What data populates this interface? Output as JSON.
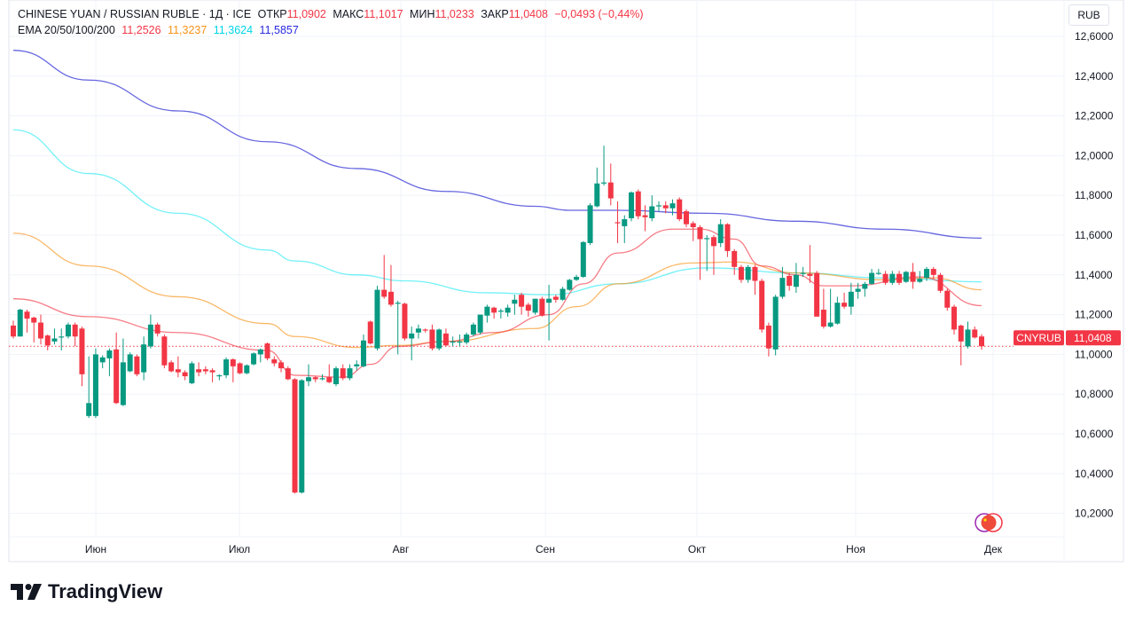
{
  "legend": {
    "symbol": "CHINESE YUAN / RUSSIAN RUBLE · 1Д · ICE",
    "open_label": "ОТКР",
    "open": "11,0902",
    "high_label": "МАКС",
    "high": "11,1017",
    "low_label": "МИН",
    "low": "11,0233",
    "close_label": "ЗАКР",
    "close": "11,0408",
    "change": "−0,0493 (−0,44%)",
    "ema_label": "EMA 20/50/100/200",
    "ema20": "11,2526",
    "ema50": "11,3237",
    "ema100": "11,3624",
    "ema200": "11,5857"
  },
  "currency_unit": "RUB",
  "price_badge": {
    "symbol": "CNYRUB",
    "value": "11,0408"
  },
  "brand": "TradingView",
  "colors": {
    "up": "#089981",
    "down": "#f23645",
    "ema20": "#f23645",
    "ema50": "#f7931a",
    "ema100": "#00e5f0",
    "ema200": "#3f3fd8",
    "grid": "#f0f3fa"
  },
  "chart_data": {
    "type": "candlestick",
    "symbol": "CNYRUB",
    "interval": "1Д",
    "ylim": [
      10.1,
      12.7
    ],
    "yticks": [
      "10,2000",
      "10,4000",
      "10,6000",
      "10,8000",
      "11,0000",
      "11,2000",
      "11,4000",
      "11,6000",
      "11,8000",
      "12,0000",
      "12,2000",
      "12,4000",
      "12,6000"
    ],
    "ytick_values": [
      10.2,
      10.4,
      10.6,
      10.8,
      11.0,
      11.2,
      11.4,
      11.6,
      11.8,
      12.0,
      12.2,
      12.4,
      12.6
    ],
    "xticks": [
      "Июн",
      "Июл",
      "Авг",
      "Сен",
      "Окт",
      "Ноя",
      "Дек"
    ],
    "last_price": 11.0408,
    "ohlc": [
      [
        11.145,
        11.17,
        11.08,
        11.09
      ],
      [
        11.09,
        11.23,
        11.09,
        11.225
      ],
      [
        11.215,
        11.225,
        11.11,
        11.18
      ],
      [
        11.185,
        11.19,
        11.06,
        11.16
      ],
      [
        11.16,
        11.2,
        11.05,
        11.08
      ],
      [
        11.095,
        11.1,
        11.02,
        11.045
      ],
      [
        11.065,
        11.13,
        11.05,
        11.08
      ],
      [
        11.085,
        11.13,
        11.02,
        11.09
      ],
      [
        11.09,
        11.16,
        11.08,
        11.15
      ],
      [
        11.15,
        11.16,
        11.04,
        11.09
      ],
      [
        11.13,
        11.14,
        10.84,
        10.9
      ],
      [
        10.69,
        10.99,
        10.68,
        10.755
      ],
      [
        10.69,
        11.03,
        10.68,
        11.0
      ],
      [
        10.96,
        10.995,
        10.93,
        10.985
      ],
      [
        10.98,
        11.03,
        10.89,
        11.02
      ],
      [
        11.025,
        11.11,
        10.75,
        10.755
      ],
      [
        10.745,
        11.08,
        10.74,
        10.96
      ],
      [
        10.915,
        11.01,
        10.91,
        11.0
      ],
      [
        10.99,
        11.0,
        10.89,
        10.9
      ],
      [
        10.91,
        11.09,
        10.87,
        11.05
      ],
      [
        11.04,
        11.2,
        11.03,
        11.15
      ],
      [
        11.15,
        11.16,
        11.09,
        11.105
      ],
      [
        11.09,
        11.1,
        10.93,
        10.945
      ],
      [
        10.96,
        10.97,
        10.91,
        10.915
      ],
      [
        10.925,
        10.99,
        10.885,
        10.91
      ],
      [
        10.91,
        10.92,
        10.87,
        10.89
      ],
      [
        10.855,
        10.965,
        10.85,
        10.955
      ],
      [
        10.925,
        10.96,
        10.89,
        10.91
      ],
      [
        10.925,
        10.94,
        10.9,
        10.915
      ],
      [
        10.92,
        10.93,
        10.86,
        10.91
      ],
      [
        10.895,
        10.9,
        10.87,
        10.895
      ],
      [
        10.895,
        10.985,
        10.88,
        10.975
      ],
      [
        10.975,
        10.98,
        10.86,
        10.94
      ],
      [
        10.955,
        10.96,
        10.9,
        10.905
      ],
      [
        10.905,
        10.95,
        10.9,
        10.945
      ],
      [
        10.95,
        11.01,
        10.945,
        11.005
      ],
      [
        11.0,
        11.03,
        10.96,
        11.025
      ],
      [
        11.055,
        11.06,
        10.97,
        10.98
      ],
      [
        10.975,
        10.99,
        10.94,
        10.955
      ],
      [
        10.96,
        10.97,
        10.91,
        10.93
      ],
      [
        10.93,
        10.94,
        10.87,
        10.875
      ],
      [
        10.875,
        10.88,
        10.3,
        10.305
      ],
      [
        10.305,
        10.875,
        10.3,
        10.87
      ],
      [
        10.865,
        10.95,
        10.84,
        10.885
      ],
      [
        10.885,
        10.89,
        10.86,
        10.875
      ],
      [
        10.875,
        10.9,
        10.87,
        10.88
      ],
      [
        10.885,
        10.95,
        10.855,
        10.86
      ],
      [
        10.85,
        10.94,
        10.84,
        10.93
      ],
      [
        10.93,
        10.95,
        10.87,
        10.88
      ],
      [
        10.88,
        10.95,
        10.87,
        10.93
      ],
      [
        10.94,
        10.97,
        10.92,
        10.95
      ],
      [
        10.94,
        11.1,
        10.935,
        11.07
      ],
      [
        11.165,
        11.17,
        11.05,
        11.055
      ],
      [
        11.03,
        11.345,
        11.02,
        11.325
      ],
      [
        11.325,
        11.5,
        11.28,
        11.29
      ],
      [
        11.315,
        11.45,
        11.24,
        11.25
      ],
      [
        11.255,
        11.27,
        11.0,
        11.26
      ],
      [
        11.255,
        11.26,
        11.07,
        11.08
      ],
      [
        11.08,
        11.14,
        10.97,
        11.105
      ],
      [
        11.11,
        11.15,
        11.08,
        11.13
      ],
      [
        11.125,
        11.13,
        11.11,
        11.12
      ],
      [
        11.125,
        11.15,
        11.02,
        11.03
      ],
      [
        11.03,
        11.13,
        11.02,
        11.125
      ],
      [
        11.105,
        11.13,
        11.04,
        11.045
      ],
      [
        11.06,
        11.09,
        11.04,
        11.065
      ],
      [
        11.06,
        11.1,
        11.04,
        11.065
      ],
      [
        11.06,
        11.11,
        11.05,
        11.1
      ],
      [
        11.1,
        11.16,
        11.09,
        11.15
      ],
      [
        11.11,
        11.2,
        11.1,
        11.2
      ],
      [
        11.195,
        11.25,
        11.16,
        11.24
      ],
      [
        11.235,
        11.24,
        11.18,
        11.21
      ],
      [
        11.215,
        11.23,
        11.18,
        11.22
      ],
      [
        11.21,
        11.25,
        11.19,
        11.235
      ],
      [
        11.255,
        11.3,
        11.2,
        11.275
      ],
      [
        11.3,
        11.31,
        11.2,
        11.24
      ],
      [
        11.25,
        11.26,
        11.19,
        11.22
      ],
      [
        11.21,
        11.28,
        11.2,
        11.28
      ],
      [
        11.28,
        11.29,
        11.19,
        11.195
      ],
      [
        11.26,
        11.35,
        11.07,
        11.28
      ],
      [
        11.29,
        11.3,
        11.26,
        11.275
      ],
      [
        11.275,
        11.34,
        11.27,
        11.33
      ],
      [
        11.325,
        11.38,
        11.32,
        11.375
      ],
      [
        11.375,
        11.4,
        11.37,
        11.39
      ],
      [
        11.39,
        11.57,
        11.385,
        11.565
      ],
      [
        11.56,
        11.76,
        11.55,
        11.75
      ],
      [
        11.745,
        11.94,
        11.74,
        11.86
      ],
      [
        11.86,
        12.05,
        11.85,
        11.865
      ],
      [
        11.865,
        11.96,
        11.75,
        11.785
      ],
      [
        11.665,
        11.77,
        11.56,
        11.66
      ],
      [
        11.645,
        11.7,
        11.56,
        11.68
      ],
      [
        11.685,
        11.82,
        11.67,
        11.815
      ],
      [
        11.82,
        11.83,
        11.68,
        11.695
      ],
      [
        11.7,
        11.75,
        11.62,
        11.69
      ],
      [
        11.685,
        11.8,
        11.67,
        11.745
      ],
      [
        11.745,
        11.77,
        11.72,
        11.75
      ],
      [
        11.75,
        11.77,
        11.71,
        11.735
      ],
      [
        11.735,
        11.78,
        11.7,
        11.76
      ],
      [
        11.78,
        11.79,
        11.67,
        11.68
      ],
      [
        11.72,
        11.73,
        11.64,
        11.655
      ],
      [
        11.66,
        11.67,
        11.57,
        11.64
      ],
      [
        11.64,
        11.65,
        11.375,
        11.58
      ],
      [
        11.585,
        11.6,
        11.42,
        11.585
      ],
      [
        11.59,
        11.6,
        11.4,
        11.545
      ],
      [
        11.56,
        11.68,
        11.54,
        11.655
      ],
      [
        11.655,
        11.66,
        11.49,
        11.52
      ],
      [
        11.52,
        11.53,
        11.4,
        11.44
      ],
      [
        11.44,
        11.45,
        11.36,
        11.375
      ],
      [
        11.375,
        11.45,
        11.36,
        11.44
      ],
      [
        11.44,
        11.45,
        11.3,
        11.37
      ],
      [
        11.37,
        11.38,
        11.11,
        11.125
      ],
      [
        11.145,
        11.16,
        10.99,
        11.03
      ],
      [
        11.025,
        11.3,
        10.995,
        11.29
      ],
      [
        11.29,
        11.44,
        11.28,
        11.385
      ],
      [
        11.395,
        11.41,
        11.32,
        11.345
      ],
      [
        11.34,
        11.46,
        11.31,
        11.4
      ],
      [
        11.405,
        11.44,
        11.39,
        11.41
      ],
      [
        11.405,
        11.55,
        11.36,
        11.395
      ],
      [
        11.41,
        11.42,
        11.19,
        11.19
      ],
      [
        11.225,
        11.33,
        11.13,
        11.14
      ],
      [
        11.14,
        11.33,
        11.135,
        11.16
      ],
      [
        11.155,
        11.29,
        11.15,
        11.26
      ],
      [
        11.26,
        11.31,
        11.23,
        11.24
      ],
      [
        11.24,
        11.36,
        11.2,
        11.315
      ],
      [
        11.315,
        11.36,
        11.28,
        11.33
      ],
      [
        11.33,
        11.365,
        11.29,
        11.355
      ],
      [
        11.355,
        11.43,
        11.35,
        11.41
      ],
      [
        11.405,
        11.43,
        11.4,
        11.41
      ],
      [
        11.405,
        11.42,
        11.35,
        11.36
      ],
      [
        11.36,
        11.42,
        11.35,
        11.405
      ],
      [
        11.405,
        11.42,
        11.35,
        11.36
      ],
      [
        11.365,
        11.42,
        11.36,
        11.415
      ],
      [
        11.415,
        11.46,
        11.33,
        11.365
      ],
      [
        11.365,
        11.42,
        11.36,
        11.38
      ],
      [
        11.385,
        11.44,
        11.37,
        11.43
      ],
      [
        11.43,
        11.44,
        11.38,
        11.4
      ],
      [
        11.4,
        11.41,
        11.31,
        11.32
      ],
      [
        11.32,
        11.33,
        11.22,
        11.235
      ],
      [
        11.24,
        11.25,
        11.1,
        11.125
      ],
      [
        11.145,
        11.15,
        10.945,
        11.065
      ],
      [
        11.04,
        11.165,
        11.03,
        11.125
      ],
      [
        11.125,
        11.14,
        11.08,
        11.085
      ],
      [
        11.0902,
        11.1017,
        11.0233,
        11.0408
      ]
    ],
    "ema": {
      "ema200": [
        [
          0,
          12.53
        ],
        [
          11,
          12.38
        ],
        [
          24,
          12.225
        ],
        [
          37,
          12.07
        ],
        [
          50,
          11.935
        ],
        [
          63,
          11.82
        ],
        [
          76,
          11.745
        ],
        [
          81,
          11.725
        ],
        [
          88,
          11.725
        ],
        [
          101,
          11.71
        ],
        [
          114,
          11.67
        ],
        [
          127,
          11.63
        ],
        [
          141,
          11.585
        ]
      ],
      "ema100": [
        [
          0,
          12.13
        ],
        [
          11,
          11.91
        ],
        [
          24,
          11.71
        ],
        [
          37,
          11.525
        ],
        [
          41,
          11.47
        ],
        [
          50,
          11.4
        ],
        [
          57,
          11.37
        ],
        [
          69,
          11.31
        ],
        [
          78,
          11.3
        ],
        [
          88,
          11.355
        ],
        [
          101,
          11.435
        ],
        [
          114,
          11.41
        ],
        [
          127,
          11.385
        ],
        [
          141,
          11.365
        ]
      ],
      "ema50": [
        [
          0,
          11.61
        ],
        [
          11,
          11.445
        ],
        [
          24,
          11.29
        ],
        [
          37,
          11.155
        ],
        [
          41,
          11.09
        ],
        [
          50,
          11.035
        ],
        [
          56,
          11.045
        ],
        [
          63,
          11.065
        ],
        [
          76,
          11.13
        ],
        [
          82,
          11.24
        ],
        [
          88,
          11.355
        ],
        [
          99,
          11.46
        ],
        [
          105,
          11.465
        ],
        [
          114,
          11.41
        ],
        [
          127,
          11.375
        ],
        [
          134,
          11.385
        ],
        [
          141,
          11.325
        ]
      ],
      "ema20": [
        [
          0,
          11.28
        ],
        [
          11,
          11.19
        ],
        [
          24,
          11.11
        ],
        [
          37,
          11.02
        ],
        [
          41,
          10.895
        ],
        [
          48,
          10.885
        ],
        [
          52,
          10.95
        ],
        [
          56,
          11.04
        ],
        [
          63,
          11.065
        ],
        [
          70,
          11.11
        ],
        [
          78,
          11.2
        ],
        [
          83,
          11.355
        ],
        [
          88,
          11.51
        ],
        [
          96,
          11.63
        ],
        [
          100,
          11.63
        ],
        [
          105,
          11.58
        ],
        [
          109,
          11.445
        ],
        [
          114,
          11.4
        ],
        [
          118,
          11.345
        ],
        [
          122,
          11.345
        ],
        [
          132,
          11.39
        ],
        [
          141,
          11.245
        ]
      ]
    }
  }
}
